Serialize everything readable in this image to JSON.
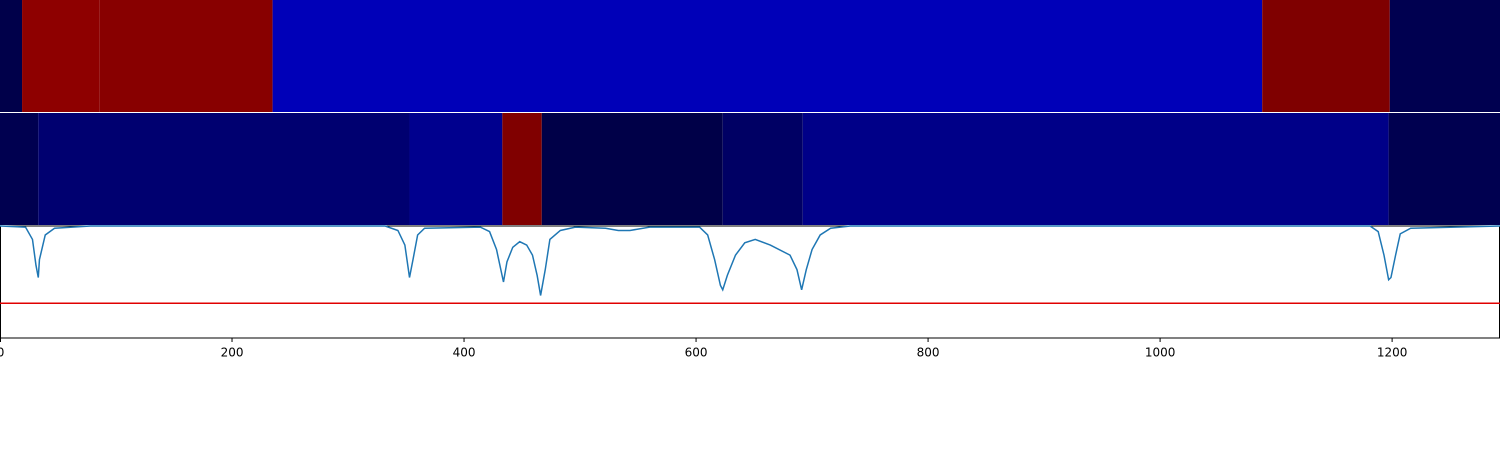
{
  "chart_data": {
    "type": "line",
    "xlim": [
      0,
      1293
    ],
    "xticks": [
      0,
      200,
      400,
      600,
      800,
      1000,
      1200
    ],
    "ylim": [
      0,
      1
    ],
    "strips": [
      {
        "segments": [
          {
            "start": 0,
            "end": 19,
            "color": "#00004a"
          },
          {
            "start": 19,
            "end": 86,
            "color": "#8e0000"
          },
          {
            "start": 86,
            "end": 235,
            "color": "#880000"
          },
          {
            "start": 235,
            "end": 1088,
            "color": "#0000b8"
          },
          {
            "start": 1088,
            "end": 1198,
            "color": "#7f0000"
          },
          {
            "start": 1198,
            "end": 1293,
            "color": "#000050"
          }
        ]
      },
      {
        "segments": [
          {
            "start": 0,
            "end": 33,
            "color": "#000050"
          },
          {
            "start": 33,
            "end": 353,
            "color": "#000070"
          },
          {
            "start": 353,
            "end": 433,
            "color": "#00008e"
          },
          {
            "start": 433,
            "end": 467,
            "color": "#800000"
          },
          {
            "start": 467,
            "end": 623,
            "color": "#000048"
          },
          {
            "start": 623,
            "end": 692,
            "color": "#000064"
          },
          {
            "start": 692,
            "end": 1197,
            "color": "#000088"
          },
          {
            "start": 1197,
            "end": 1293,
            "color": "#000050"
          }
        ]
      }
    ],
    "x": [
      0,
      22,
      28,
      31,
      33,
      34,
      39,
      47,
      78,
      332,
      343,
      349,
      353,
      356,
      360,
      366,
      414,
      422,
      428,
      434,
      437,
      442,
      448,
      454,
      459,
      463,
      466,
      470,
      474,
      483,
      496,
      522,
      533,
      543,
      560,
      603,
      610,
      616,
      621,
      623,
      627,
      634,
      642,
      651,
      664,
      681,
      687,
      691,
      695,
      700,
      707,
      716,
      733,
      1181,
      1188,
      1193,
      1197,
      1199,
      1203,
      1207,
      1216,
      1293
    ],
    "series": [
      {
        "color": "#1f77b4",
        "values": [
          1.0,
          0.99,
          0.88,
          0.65,
          0.54,
          0.7,
          0.92,
          0.98,
          1.0,
          1.0,
          0.96,
          0.83,
          0.54,
          0.7,
          0.92,
          0.98,
          0.99,
          0.95,
          0.79,
          0.5,
          0.68,
          0.81,
          0.86,
          0.83,
          0.74,
          0.56,
          0.38,
          0.61,
          0.88,
          0.96,
          0.99,
          0.98,
          0.96,
          0.96,
          0.99,
          0.99,
          0.92,
          0.7,
          0.47,
          0.43,
          0.56,
          0.74,
          0.85,
          0.88,
          0.83,
          0.74,
          0.61,
          0.43,
          0.61,
          0.79,
          0.92,
          0.98,
          1.0,
          1.0,
          0.95,
          0.74,
          0.52,
          0.54,
          0.74,
          0.93,
          0.98,
          1.0
        ]
      }
    ],
    "threshold": {
      "value": 0.31,
      "color": "#e00000"
    }
  }
}
